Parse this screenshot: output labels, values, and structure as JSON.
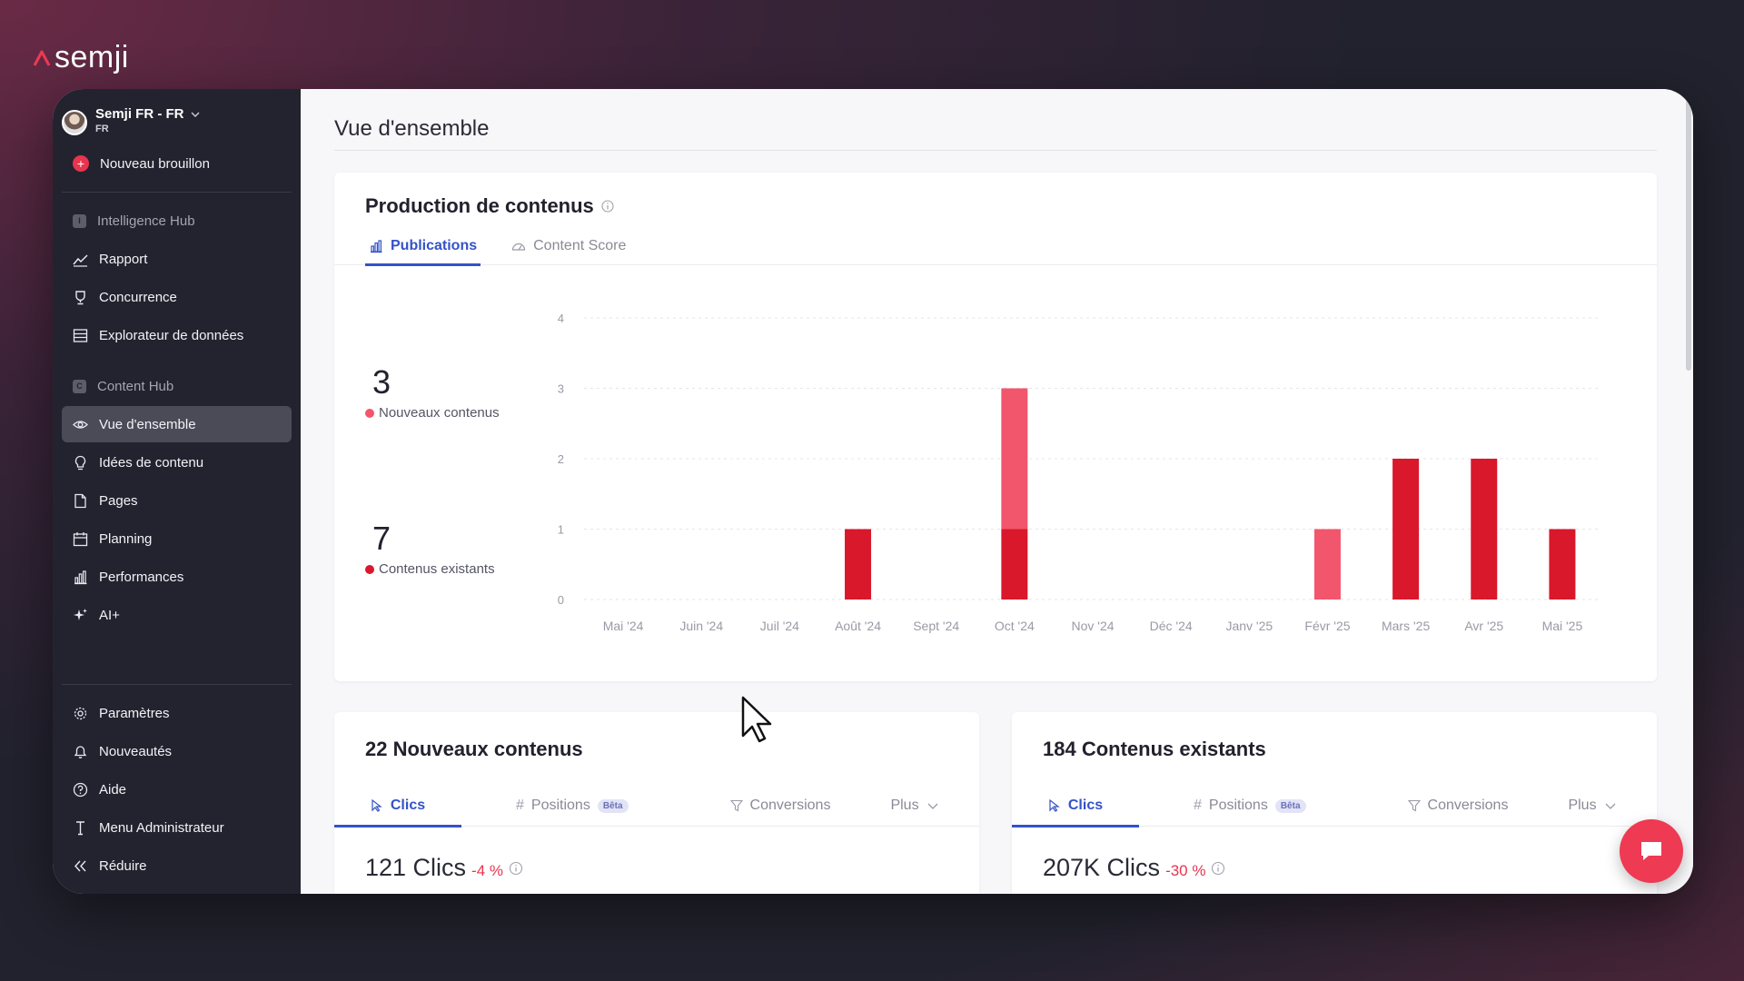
{
  "brand": {
    "name": "semji"
  },
  "sidebar": {
    "account": {
      "name": "Semji FR - FR",
      "sub": "FR"
    },
    "new_draft": "Nouveau brouillon",
    "section_intel": "Intelligence Hub",
    "intel_items": [
      {
        "label": "Rapport",
        "icon": "trend-icon"
      },
      {
        "label": "Concurrence",
        "icon": "trophy-icon"
      },
      {
        "label": "Explorateur de données",
        "icon": "database-icon"
      }
    ],
    "section_content": "Content Hub",
    "content_items": [
      {
        "label": "Vue d'ensemble",
        "icon": "eye-icon",
        "active": true
      },
      {
        "label": "Idées de contenu",
        "icon": "lightbulb-icon"
      },
      {
        "label": "Pages",
        "icon": "page-icon"
      },
      {
        "label": "Planning",
        "icon": "calendar-icon"
      },
      {
        "label": "Performances",
        "icon": "bar-chart-icon"
      },
      {
        "label": "AI+",
        "icon": "sparkle-icon"
      }
    ],
    "footer_items": [
      {
        "label": "Paramètres",
        "icon": "gear-icon"
      },
      {
        "label": "Nouveautés",
        "icon": "bell-icon"
      },
      {
        "label": "Aide",
        "icon": "help-icon"
      },
      {
        "label": "Menu Administrateur",
        "icon": "admin-icon"
      },
      {
        "label": "Réduire",
        "icon": "collapse-icon"
      }
    ]
  },
  "main": {
    "title": "Vue d'ensemble",
    "production": {
      "title": "Production de contenus",
      "tabs": [
        "Publications",
        "Content Score"
      ],
      "kpis": [
        {
          "value": "3",
          "label": "Nouveaux contenus",
          "color": "#f2566c"
        },
        {
          "value": "7",
          "label": "Contenus existants",
          "color": "#d9182c"
        }
      ]
    },
    "new_card": {
      "title": "22 Nouveaux contenus",
      "tabs": {
        "clics": "Clics",
        "positions": "Positions",
        "beta": "Bêta",
        "conversions": "Conversions",
        "plus": "Plus"
      },
      "metric": "121 Clics",
      "delta": "-4 %"
    },
    "existing_card": {
      "title": "184 Contenus existants",
      "tabs": {
        "clics": "Clics",
        "positions": "Positions",
        "beta": "Bêta",
        "conversions": "Conversions",
        "plus": "Plus"
      },
      "metric": "207K Clics",
      "delta": "-30 %"
    }
  },
  "chart_data": {
    "type": "bar",
    "stacked": true,
    "categories": [
      "Mai '24",
      "Juin '24",
      "Juil '24",
      "Août '24",
      "Sept '24",
      "Oct '24",
      "Nov '24",
      "Déc '24",
      "Janv '25",
      "Févr '25",
      "Mars '25",
      "Avr '25",
      "Mai '25"
    ],
    "series": [
      {
        "name": "Contenus existants",
        "color": "#d9182c",
        "values": [
          0,
          0,
          0,
          1,
          0,
          1,
          0,
          0,
          0,
          0,
          2,
          2,
          1
        ]
      },
      {
        "name": "Nouveaux contenus",
        "color": "#f2566c",
        "values": [
          0,
          0,
          0,
          0,
          0,
          2,
          0,
          0,
          0,
          1,
          0,
          0,
          0
        ]
      }
    ],
    "ylim": [
      0,
      4
    ],
    "yticks": [
      0,
      1,
      2,
      3,
      4
    ],
    "grid": true
  },
  "colors": {
    "accent": "#3452c8",
    "brand_red": "#ee3a52",
    "sidebar_bg": "#23232f"
  }
}
